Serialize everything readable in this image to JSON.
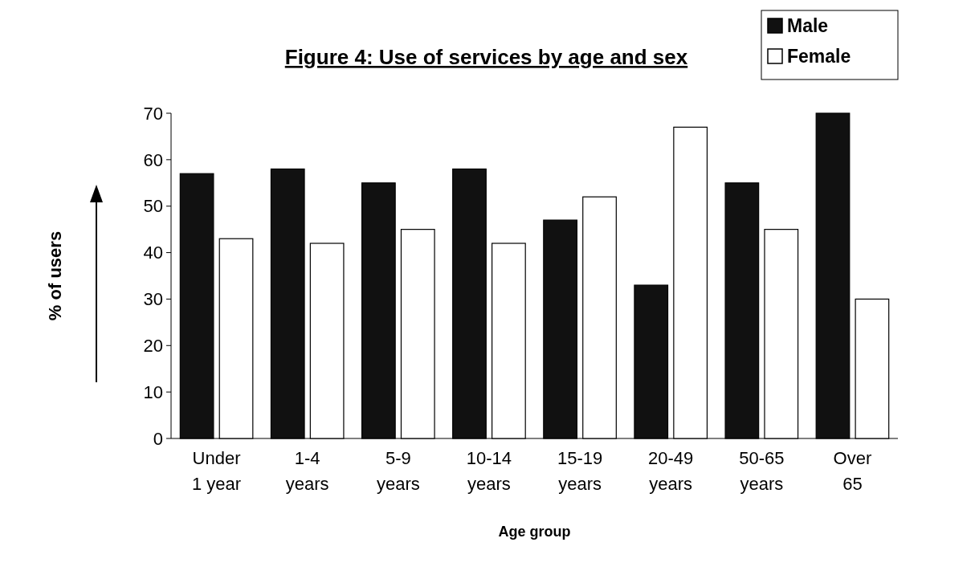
{
  "chart_data": {
    "type": "bar",
    "title": "Figure 4: Use of services by age and sex",
    "xlabel": "Age group",
    "ylabel": "% of users",
    "categories": [
      "Under 1 year",
      "1-4 years",
      "5-9 years",
      "10-14 years",
      "15-19 years",
      "20-49 years",
      "50-65 years",
      "Over 65"
    ],
    "series": [
      {
        "name": "Male",
        "color": "#111111",
        "values": [
          57,
          58,
          55,
          58,
          47,
          33,
          55,
          70
        ]
      },
      {
        "name": "Female",
        "color": "#ffffff",
        "values": [
          43,
          42,
          45,
          42,
          52,
          67,
          45,
          30
        ]
      }
    ],
    "ylim": [
      0,
      70
    ],
    "yticks": [
      0,
      10,
      20,
      30,
      40,
      50,
      60,
      70
    ],
    "grid": false,
    "legend": "top right"
  }
}
